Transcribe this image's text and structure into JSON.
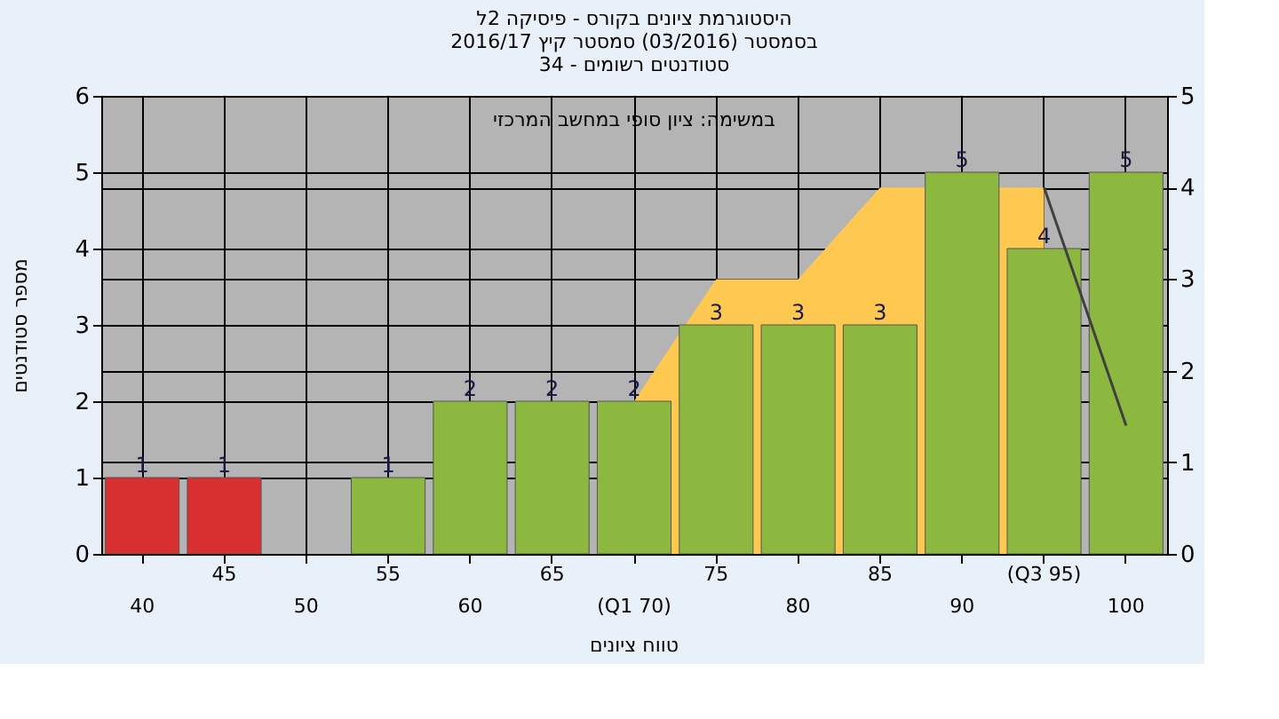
{
  "chart_data": {
    "type": "bar",
    "title": [
      "היסטוגרמת ציונים בקורס - פיסיקה 2ל",
      "בסמסטר (03/2016) סמסטר קיץ 2016/17",
      "סטודנטים רשומים - 34"
    ],
    "xlabel": "טווח ציונים",
    "ylabel": "מספר סטודנטים",
    "annotations": [
      "במשימה: ציון סופי במחשב המרכזי"
    ],
    "categories": [
      "40",
      "45",
      "50",
      "55",
      "60",
      "65",
      "(Q1 70)",
      "75",
      "80",
      "85",
      "90",
      "(Q3 95)",
      "100"
    ],
    "series": [
      {
        "values": [
          1,
          1,
          null,
          1,
          2,
          2,
          2,
          3,
          3,
          3,
          5,
          4,
          5
        ],
        "value_labels": [
          "1",
          "1",
          null,
          "1",
          "2",
          "2",
          "2",
          "3",
          "3",
          "3",
          "5",
          "4",
          "5"
        ],
        "colors": [
          "#d83030",
          "#d83030",
          "#8cb840",
          "#8cb840",
          "#8cb840",
          "#8cb840",
          "#8cb840",
          "#8cb840",
          "#8cb840",
          "#8cb840",
          "#8cb840",
          "#8cb840",
          "#8cb840"
        ]
      },
      {
        "type": "area",
        "axis": "y2",
        "color": "#ffc850",
        "x": [
          "(Q1 70)",
          "75",
          "80",
          "85",
          "(Q3 95)"
        ],
        "values": [
          1.67,
          3,
          3,
          4,
          4
        ]
      },
      {
        "type": "line",
        "axis": "y2",
        "color": "#404040",
        "x": [
          "(Q3 95)",
          "100"
        ],
        "values": [
          4,
          1.4
        ]
      }
    ],
    "ylim": [
      0,
      6
    ],
    "yticks": [
      0,
      1,
      2,
      3,
      4,
      5,
      6
    ],
    "y2lim": [
      0,
      5
    ],
    "y2ticks": [
      0,
      1,
      2,
      3,
      4,
      5
    ],
    "grid": true
  }
}
